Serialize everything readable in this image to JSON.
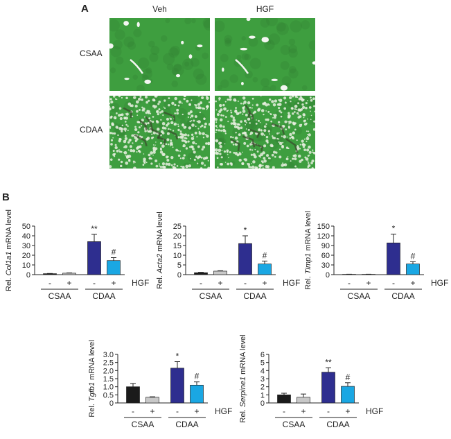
{
  "panel_a": {
    "label": "A",
    "columns": [
      "Veh",
      "HGF"
    ],
    "rows": [
      "CSAA",
      "CDAA"
    ],
    "colors": {
      "tissue": "#3e9e3f",
      "tissue_dark": "#2f7d31",
      "vessel": "#f4f6f2",
      "fibrosis": "#3a4a2e",
      "fat": "#e8eedf"
    }
  },
  "panel_b": {
    "label": "B",
    "legend_label": "HGF",
    "hgf_signs": [
      "-",
      "+",
      "-",
      "+"
    ],
    "groups": [
      "CSAA",
      "CDAA"
    ],
    "bar_colors": [
      "#1b1b1b",
      "#c8c8c8",
      "#2e2e8f",
      "#1aa7e3"
    ]
  },
  "chart_data": [
    {
      "type": "bar",
      "ylabel_prefix": "Rel. ",
      "ylabel_gene": "Col1a1",
      "ylabel_suffix": " mRNA level",
      "ylim": [
        0,
        50
      ],
      "yticks": [
        "0",
        "10",
        "20",
        "30",
        "40",
        "50"
      ],
      "values": [
        1.0,
        1.5,
        34,
        14.5
      ],
      "errors": [
        0.2,
        0.3,
        7.5,
        3.0
      ],
      "annotations": [
        "",
        "",
        "**",
        "#"
      ]
    },
    {
      "type": "bar",
      "ylabel_prefix": "Rel. ",
      "ylabel_gene": "Acta2",
      "ylabel_suffix": " mRNA level",
      "ylim": [
        0,
        25
      ],
      "yticks": [
        "0",
        "5",
        "10",
        "15",
        "20",
        "25"
      ],
      "values": [
        1.0,
        1.8,
        16,
        5.5
      ],
      "errors": [
        0.2,
        0.2,
        4.0,
        1.5
      ],
      "annotations": [
        "",
        "",
        "*",
        "#"
      ]
    },
    {
      "type": "bar",
      "ylabel_prefix": "Rel. ",
      "ylabel_gene": "Timp1",
      "ylabel_suffix": " mRNA level",
      "ylim": [
        0,
        150
      ],
      "yticks": [
        "0",
        "30",
        "60",
        "90",
        "120",
        "150"
      ],
      "values": [
        1.0,
        1.0,
        98,
        33
      ],
      "errors": [
        0.3,
        0.3,
        27,
        7
      ],
      "annotations": [
        "",
        "",
        "*",
        "#"
      ]
    },
    {
      "type": "bar",
      "ylabel_prefix": "Rel. ",
      "ylabel_gene": "Tgfb1",
      "ylabel_suffix": " mRNA level",
      "ylim": [
        0,
        3.0
      ],
      "yticks": [
        "0",
        "0.5",
        "1.0",
        "1.5",
        "2.0",
        "2.5",
        "3.0"
      ],
      "values": [
        1.0,
        0.35,
        2.15,
        1.1
      ],
      "errors": [
        0.2,
        0.03,
        0.4,
        0.2
      ],
      "annotations": [
        "",
        "",
        "*",
        "#"
      ]
    },
    {
      "type": "bar",
      "ylabel_prefix": "Rel. ",
      "ylabel_gene": "Serpine1",
      "ylabel_suffix": " mRNA level",
      "ylim": [
        0,
        6
      ],
      "yticks": [
        "0",
        "1",
        "2",
        "3",
        "4",
        "5",
        "6"
      ],
      "values": [
        1.0,
        0.7,
        3.8,
        2.05
      ],
      "errors": [
        0.2,
        0.4,
        0.55,
        0.45
      ],
      "annotations": [
        "",
        "",
        "**",
        "#"
      ]
    }
  ]
}
